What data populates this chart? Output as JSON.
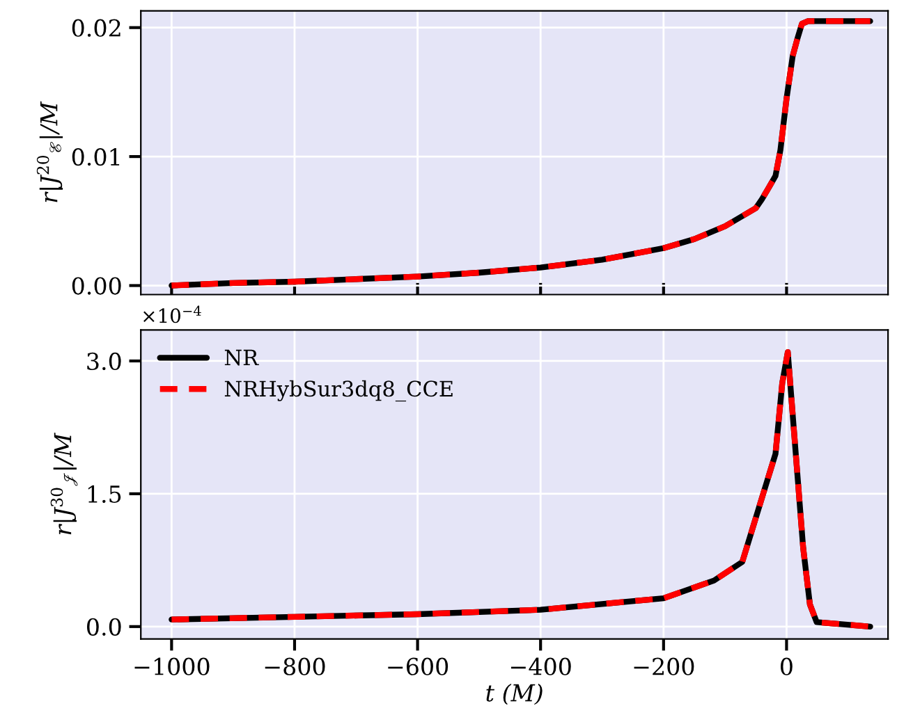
{
  "chart_data": [
    {
      "type": "line",
      "ylabel": "r|J$^{20}$$_{ℰ}$|/M",
      "xlim": [
        -1050,
        165
      ],
      "xticks": [
        {
          "value": -1000,
          "label": null
        },
        {
          "value": -800,
          "label": null
        },
        {
          "value": -600,
          "label": null
        },
        {
          "value": -400,
          "label": null
        },
        {
          "value": -200,
          "label": null
        },
        {
          "value": 0,
          "label": null
        }
      ],
      "ylim": [
        -0.0007,
        0.0213
      ],
      "yticks": [
        {
          "value": 0,
          "label": "0.00"
        },
        {
          "value": 0.01,
          "label": "0.01"
        },
        {
          "value": 0.02,
          "label": "0.02"
        }
      ],
      "grid": true,
      "tick_labels": "y",
      "x": [
        -1000,
        -900,
        -800,
        -700,
        -600,
        -500,
        -400,
        -300,
        -200,
        -150,
        -100,
        -75,
        -50,
        -40,
        -30,
        -18,
        -10,
        0,
        10,
        18,
        25,
        35,
        136
      ],
      "series": [
        {
          "color": "#000000",
          "line_style": "solid",
          "values": [
            0.0,
            0.0002,
            0.0003,
            0.0005,
            0.0007,
            0.001,
            0.0014,
            0.002,
            0.0029,
            0.0036,
            0.0046,
            0.0053,
            0.006,
            0.0067,
            0.0075,
            0.0085,
            0.0105,
            0.0145,
            0.0178,
            0.0192,
            0.0203,
            0.0205,
            0.0205
          ]
        },
        {
          "color": "#ff0000",
          "line_style": "dashed",
          "values": [
            0.0,
            0.0002,
            0.0003,
            0.0005,
            0.0007,
            0.001,
            0.0014,
            0.002,
            0.0029,
            0.0036,
            0.0046,
            0.0053,
            0.006,
            0.0067,
            0.0075,
            0.0085,
            0.0105,
            0.0145,
            0.0178,
            0.0192,
            0.0203,
            0.0205,
            0.0205
          ]
        }
      ]
    },
    {
      "type": "line",
      "xlabel": "t (M)",
      "ylabel": "r|J$^{30}$$_{𝒥}$|/M",
      "annotations": [
        "×10$^{−4}$"
      ],
      "xlim": [
        -1050,
        165
      ],
      "xticks": [
        -1000,
        -800,
        -600,
        -400,
        -200,
        0
      ],
      "ylim": [
        -0.14,
        3.35
      ],
      "yticks": [
        {
          "value": 0,
          "label": "0.0"
        },
        1.5,
        {
          "value": 3,
          "label": "3.0"
        }
      ],
      "grid": true,
      "legend": "top left",
      "x": [
        -1000,
        -800,
        -600,
        -400,
        -200,
        -118,
        -72,
        -38,
        -18,
        -7,
        2,
        15,
        27,
        38,
        49,
        136
      ],
      "series": [
        {
          "name": "NR",
          "color": "#000000",
          "line_style": "solid",
          "values": [
            0.08,
            0.11,
            0.14,
            0.19,
            0.32,
            0.52,
            0.73,
            1.5,
            1.95,
            2.75,
            3.1,
            1.95,
            0.89,
            0.25,
            0.05,
            0.0
          ]
        },
        {
          "name": "NRHybSur3dq8_CCE",
          "color": "#ff0000",
          "line_style": "dashed",
          "values": [
            0.08,
            0.11,
            0.14,
            0.19,
            0.32,
            0.52,
            0.73,
            1.5,
            1.95,
            2.75,
            3.1,
            1.95,
            0.89,
            0.25,
            0.05,
            0.0
          ]
        }
      ]
    }
  ]
}
